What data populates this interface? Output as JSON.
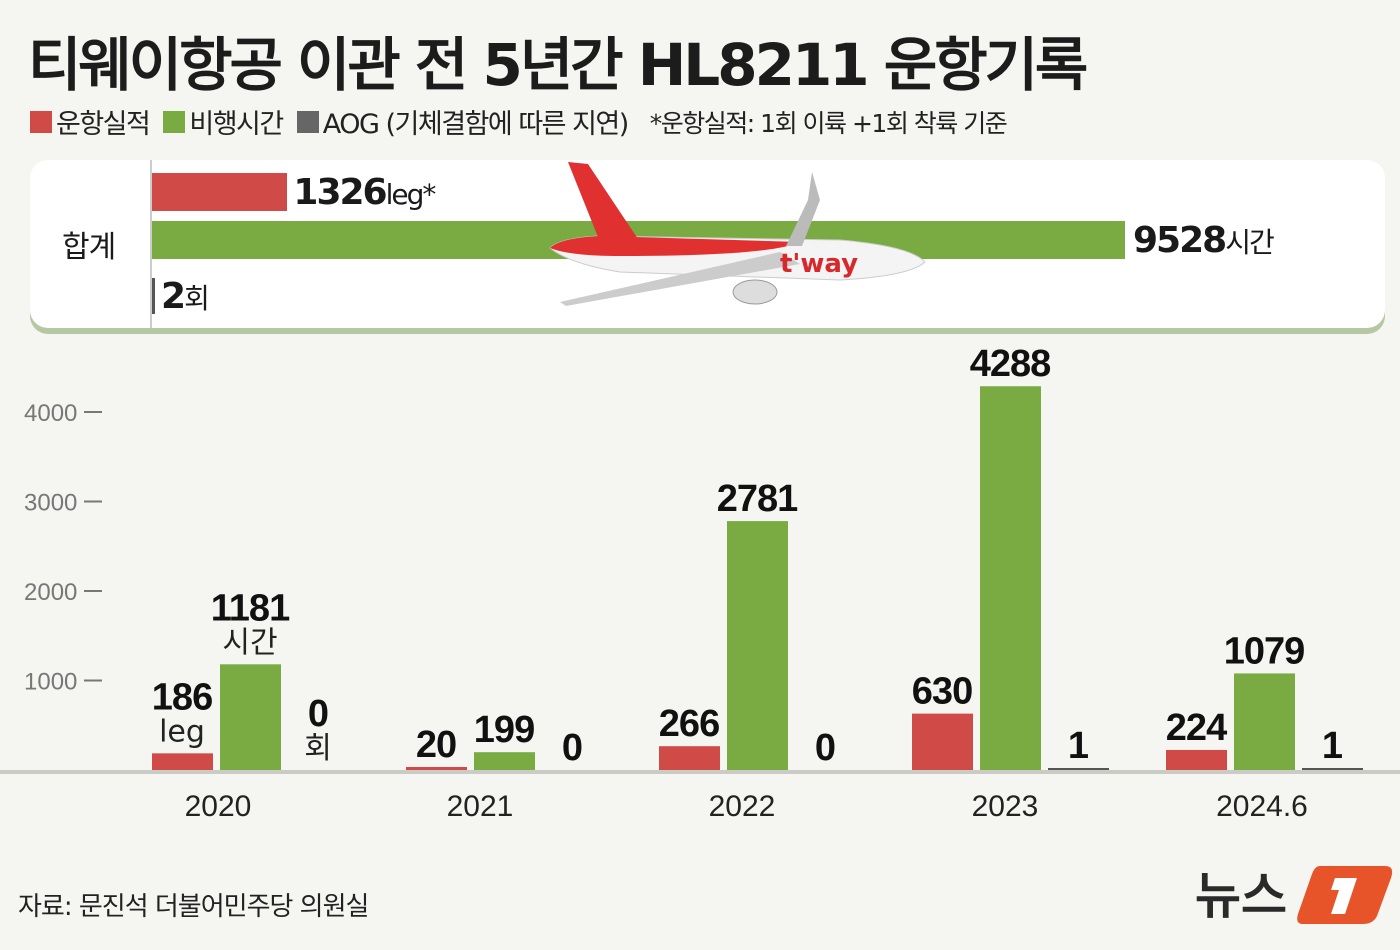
{
  "title": "티웨이항공 이관 전 5년간 HL8211 운항기록",
  "legend": [
    {
      "label": "운항실적",
      "color": "#d04b47"
    },
    {
      "label": "비행시간",
      "color": "#79ab42"
    },
    {
      "label": "AOG (기체결함에 따른 지연)",
      "color": "#666666"
    }
  ],
  "note": "*운항실적: 1회 이륙 +1회 착륙 기준",
  "summary": {
    "label": "합계",
    "flights": 1326,
    "flights_unit": "leg*",
    "hours": 9528,
    "hours_unit": "시간",
    "aog": 2,
    "aog_unit": "회"
  },
  "chart_data": {
    "type": "bar",
    "categories": [
      "2020",
      "2021",
      "2022",
      "2023",
      "2024.6"
    ],
    "series": [
      {
        "name": "운항실적",
        "values": [
          186,
          20,
          266,
          630,
          224
        ],
        "color": "#d04b47"
      },
      {
        "name": "비행시간",
        "values": [
          1181,
          199,
          2781,
          4288,
          1079
        ],
        "color": "#79ab42"
      },
      {
        "name": "AOG (기체결함에 따른 지연)",
        "values": [
          0,
          0,
          0,
          1,
          1
        ],
        "color": "#555555"
      }
    ],
    "unit_labels": [
      "leg",
      "시간",
      "회"
    ],
    "yticks": [
      "1000",
      "2000",
      "3000",
      "4000"
    ],
    "ylim": [
      0,
      4400
    ],
    "grid": false
  },
  "source": "자료: 문진석 더불어민주당 의원실",
  "logo": {
    "text": "뉴스",
    "mark": "1",
    "color": "#e8542a"
  }
}
